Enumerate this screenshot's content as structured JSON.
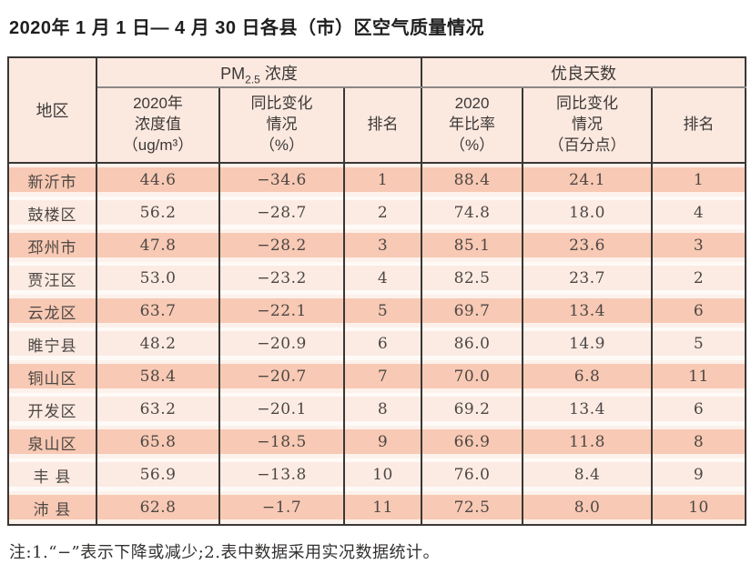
{
  "title": "2020年 1 月 1 日— 4 月 30 日各县（市）区空气质量情况",
  "colors": {
    "row_odd": "#f8c9b4",
    "row_even": "#fcebe3",
    "header_bg": "#fbe9e0",
    "border_dark": "#3a3735",
    "border_gray": "#8b8885"
  },
  "table": {
    "region_header": "地区",
    "group_pm25": {
      "prefix": "PM",
      "sub": "2.5",
      "suffix": " 浓度"
    },
    "group_good_days": "优良天数",
    "subheaders": {
      "pm_value": "2020年\n浓度值\n（ug/m³）",
      "pm_change": "同比变化\n情况\n（%）",
      "pm_rank": "排名",
      "gd_ratio": "2020\n年比率\n（%）",
      "gd_change": "同比变化\n情况\n（百分点）",
      "gd_rank": "排名"
    },
    "rows": [
      [
        "新沂市",
        "44.6",
        "−34.6",
        "1",
        "88.4",
        "24.1",
        "1"
      ],
      [
        "鼓楼区",
        "56.2",
        "−28.7",
        "2",
        "74.8",
        "18.0",
        "4"
      ],
      [
        "邳州市",
        "47.8",
        "−28.2",
        "3",
        "85.1",
        "23.6",
        "3"
      ],
      [
        "贾汪区",
        "53.0",
        "−23.2",
        "4",
        "82.5",
        "23.7",
        "2"
      ],
      [
        "云龙区",
        "63.7",
        "−22.1",
        "5",
        "69.7",
        "13.4",
        "6"
      ],
      [
        "睢宁县",
        "48.2",
        "−20.9",
        "6",
        "86.0",
        "14.9",
        "5"
      ],
      [
        "铜山区",
        "58.4",
        "−20.7",
        "7",
        "70.0",
        "6.8",
        "11"
      ],
      [
        "开发区",
        "63.2",
        "−20.1",
        "8",
        "69.2",
        "13.4",
        "6"
      ],
      [
        "泉山区",
        "65.8",
        "−18.5",
        "9",
        "66.9",
        "11.8",
        "8"
      ],
      [
        "丰 县",
        "56.9",
        "−13.8",
        "10",
        "76.0",
        "8.4",
        "9"
      ],
      [
        "沛 县",
        "62.8",
        "−1.7",
        "11",
        "72.5",
        "8.0",
        "10"
      ]
    ]
  },
  "note": "注:1.“−”表示下降或减少;2.表中数据采用实况数据统计。"
}
